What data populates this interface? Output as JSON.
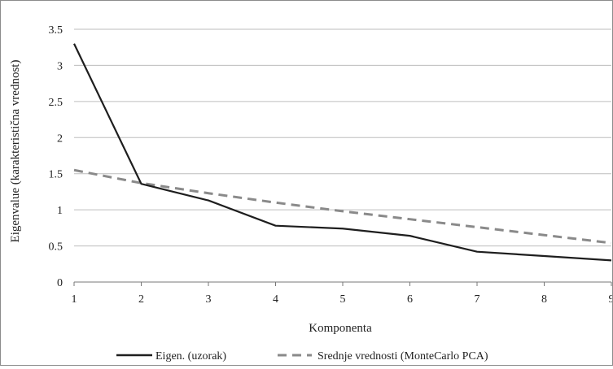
{
  "chart_data": {
    "type": "line",
    "title": "",
    "xlabel": "Komponenta",
    "ylabel": "Eigenvalue (karakteristična vrednost)",
    "xlim": [
      1,
      9
    ],
    "ylim": [
      0,
      3.5
    ],
    "x_ticks": [
      "1",
      "2",
      "3",
      "4",
      "5",
      "6",
      "7",
      "8",
      "9"
    ],
    "y_ticks": [
      "0",
      "0.5",
      "1",
      "1.5",
      "2",
      "2.5",
      "3",
      "3.5"
    ],
    "grid": "horizontal",
    "legend_position": "bottom",
    "x": [
      1,
      2,
      3,
      4,
      5,
      6,
      7,
      8,
      9
    ],
    "series": [
      {
        "name": "Eigen. (uzorak)",
        "values": [
          3.3,
          1.36,
          1.13,
          0.78,
          0.74,
          0.64,
          0.42,
          0.36,
          0.3
        ],
        "color": "#1e1e1e",
        "style": "solid"
      },
      {
        "name": "Srednje vrednosti (MonteCarlo PCA)",
        "values": [
          1.55,
          1.37,
          1.23,
          1.1,
          0.98,
          0.87,
          0.76,
          0.65,
          0.54
        ],
        "color": "#8a8a8a",
        "style": "dashed"
      }
    ]
  }
}
